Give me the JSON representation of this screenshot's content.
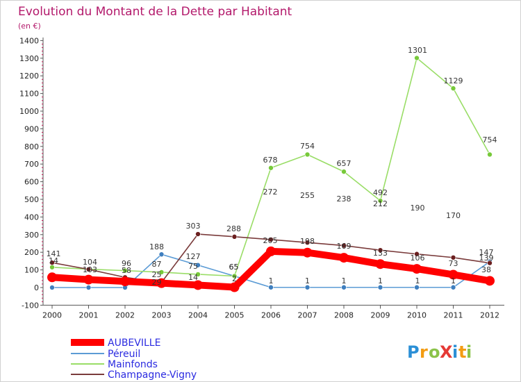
{
  "chart_data": {
    "type": "line",
    "title": "Evolution du Montant de la Dette par Habitant",
    "unit_label": "(en €)",
    "xlabel": "",
    "ylabel": "",
    "categories": [
      "2000",
      "2001",
      "2002",
      "2003",
      "2004",
      "2005",
      "2006",
      "2007",
      "2008",
      "2009",
      "2010",
      "2011",
      "2012"
    ],
    "ylim": [
      -100,
      1400
    ],
    "y_ticks": [
      -100,
      0,
      100,
      200,
      300,
      400,
      500,
      600,
      700,
      800,
      900,
      1000,
      1100,
      1200,
      1300,
      1400
    ],
    "grid": false,
    "legend_position": "bottom-left",
    "series": [
      {
        "name": "AUBEVILLE",
        "color": "#ff0000",
        "marker_color": "#ff0000",
        "emphasis": true,
        "values": [
          58,
          45,
          35,
          25,
          14,
          2,
          205,
          198,
          169,
          133,
          106,
          73,
          38
        ]
      },
      {
        "name": "Péreuil",
        "color": "#5b9bd5",
        "marker_color": "#3f7fbf",
        "values": [
          0,
          0,
          0,
          188,
          127,
          65,
          1,
          1,
          1,
          1,
          1,
          1,
          147
        ]
      },
      {
        "name": "Mainfonds",
        "color": "#99dd66",
        "marker_color": "#77c93a",
        "values": [
          115,
          104,
          96,
          87,
          75,
          65,
          678,
          754,
          657,
          492,
          1301,
          1129,
          754
        ]
      },
      {
        "name": "Champagne-Vigny",
        "color": "#7a3b3b",
        "marker_color": "#6b1f1f",
        "values": [
          141,
          103,
          58,
          29,
          303,
          288,
          272,
          255,
          238,
          212,
          190,
          170,
          139
        ]
      }
    ],
    "data_labels": [
      {
        "text": "141"
      },
      {
        "text": "14"
      },
      {
        "text": "104"
      },
      {
        "text": "103"
      },
      {
        "text": "96"
      },
      {
        "text": "58"
      },
      {
        "text": "188"
      },
      {
        "text": "87"
      },
      {
        "text": "25"
      },
      {
        "text": "29"
      },
      {
        "text": "303"
      },
      {
        "text": "127"
      },
      {
        "text": "75"
      },
      {
        "text": "14"
      },
      {
        "text": "288"
      },
      {
        "text": "65"
      },
      {
        "text": "65"
      },
      {
        "text": "2"
      },
      {
        "text": "678"
      },
      {
        "text": "272"
      },
      {
        "text": "205"
      },
      {
        "text": "1"
      },
      {
        "text": "754"
      },
      {
        "text": "255"
      },
      {
        "text": "198"
      },
      {
        "text": "1"
      },
      {
        "text": "657"
      },
      {
        "text": "238"
      },
      {
        "text": "169"
      },
      {
        "text": "1"
      },
      {
        "text": "492"
      },
      {
        "text": "212"
      },
      {
        "text": "133"
      },
      {
        "text": "1"
      },
      {
        "text": "1301"
      },
      {
        "text": "190"
      },
      {
        "text": "106"
      },
      {
        "text": "1"
      },
      {
        "text": "1129"
      },
      {
        "text": "170"
      },
      {
        "text": "73"
      },
      {
        "text": "1"
      },
      {
        "text": "754"
      },
      {
        "text": "147"
      },
      {
        "text": "139"
      },
      {
        "text": "38"
      }
    ]
  },
  "logo": {
    "text": "ProXiti",
    "letters": [
      "P",
      "r",
      "o",
      "X",
      "i",
      "t",
      "i"
    ],
    "colors": [
      "#2b8fd6",
      "#f39c12",
      "#8bc34a",
      "#e53935",
      "#2b8fd6",
      "#f39c12",
      "#8bc34a"
    ]
  }
}
